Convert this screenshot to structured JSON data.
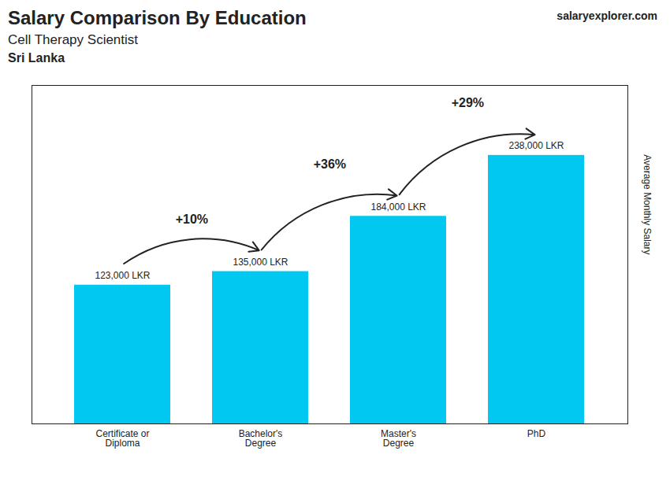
{
  "chart_data": {
    "type": "bar",
    "title": "Salary Comparison By Education",
    "subtitle": [
      "Cell Therapy Scientist",
      "Sri Lanka"
    ],
    "watermark": [
      "salary",
      "explorer",
      ".com"
    ],
    "ylabel": "Average Monthly Salary",
    "categories": [
      "Certificate or\nDiploma",
      "Bachelor's\nDegree",
      "Master's\nDegree",
      "PhD"
    ],
    "values": [
      123000,
      135000,
      184000,
      238000
    ],
    "value_labels": [
      "123,000 LKR",
      "135,000 LKR",
      "184,000 LKR",
      "238,000 LKR"
    ],
    "data_labels": true,
    "color": "#00c8f0",
    "ylim": [
      0,
      300000
    ],
    "yticks": [],
    "tick_labels": "x",
    "grid": false,
    "annotations": [
      {
        "text": "+10%",
        "from": "Certificate or\nDiploma",
        "to": "Bachelor's\nDegree"
      },
      {
        "text": "+36%",
        "from": "Bachelor's\nDegree",
        "to": "Master's\nDegree"
      },
      {
        "text": "+29%",
        "from": "Master's\nDegree",
        "to": "PhD"
      }
    ]
  }
}
